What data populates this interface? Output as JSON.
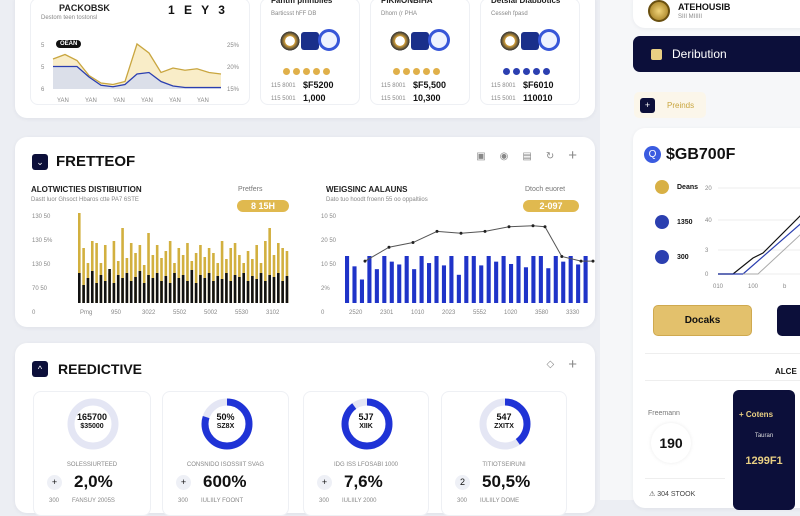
{
  "overview": {
    "chart_card": {
      "title": "PACKOBSK",
      "subtitle": "Destom teen tostonsl",
      "legend": "1 E Y 3",
      "tag": "OEAN",
      "y_left": [
        "5",
        "5",
        "6"
      ],
      "y_right": [
        "25%",
        "20%",
        "15%"
      ],
      "x_labels": [
        "YAN",
        "YAN",
        "YAN",
        "YAN",
        "YAN",
        "YAN"
      ],
      "gold_series": [
        40,
        46,
        38,
        18,
        8,
        6,
        10,
        60,
        48,
        22,
        28,
        25,
        27,
        22,
        20
      ],
      "blue_series": [
        30,
        30,
        30,
        16,
        5,
        3,
        6,
        20,
        22,
        10,
        4,
        2,
        2,
        2,
        2
      ],
      "colors": {
        "gold": "#c9a640",
        "blue": "#2b3fb0"
      }
    },
    "cards": [
      {
        "title": "Fantm pmnbiles",
        "subtitle": "Barticsst hFF DB",
        "dot_color": "#e0b04a",
        "label1": "115 8001",
        "value1": "$F5200",
        "label2": "115 5001",
        "value2": "1,000"
      },
      {
        "title": "PIKMONBIHA",
        "subtitle": "Dhorn (r PHA",
        "dot_color": "#e0b04a",
        "label1": "115 8001",
        "value1": "$F5,500",
        "label2": "115 5001",
        "value2": "10,300"
      },
      {
        "title": "Detsial Diabbotics",
        "subtitle": "Cesseh fpasd",
        "dot_color": "#2b3fb0",
        "label1": "115 8001",
        "value1": "$F6010",
        "label2": "115 5001",
        "value2": "110010"
      }
    ]
  },
  "analytics": {
    "title": "FRETTEOF",
    "toolbar_icons": [
      "save-icon",
      "circle-icon",
      "doc-icon",
      "refresh-icon",
      "plus-icon"
    ],
    "left": {
      "title": "ALOTWICTIES DISTIBIUTION",
      "subtitle": "Dastt luor Ghsoct Hbaros ctte PA7 6STE",
      "badge_label": "Pretfers",
      "badge_value": "8 15H",
      "y_labels": [
        "130 50",
        "130 5%",
        "130 50",
        "70 50",
        "0"
      ],
      "x_labels": [
        "Pmg",
        "950",
        "3022",
        "5502",
        "5002",
        "5530",
        "3102"
      ],
      "gold": [
        90,
        55,
        40,
        62,
        60,
        40,
        58,
        30,
        62,
        42,
        75,
        45,
        60,
        50,
        58,
        38,
        70,
        48,
        58,
        45,
        52,
        62,
        40,
        55,
        48,
        60,
        42,
        50,
        58,
        46,
        55,
        50,
        40,
        62,
        44,
        55,
        60,
        48,
        40,
        52,
        44,
        58,
        40,
        62,
        75,
        48,
        60,
        55,
        52
      ],
      "dark": [
        30,
        18,
        25,
        32,
        20,
        28,
        22,
        34,
        20,
        28,
        25,
        30,
        22,
        26,
        32,
        20,
        28,
        25,
        30,
        22,
        27,
        20,
        30,
        25,
        28,
        22,
        33,
        20,
        28,
        25,
        30,
        22,
        27,
        24,
        30,
        22,
        28,
        26,
        30,
        22,
        27,
        24,
        30,
        22,
        28,
        26,
        30,
        22,
        27
      ],
      "colors": {
        "gold": "#d2b03f",
        "dark": "#111"
      }
    },
    "right": {
      "title": "WEIGSINC AALAUNS",
      "subtitle": "Dato tuo hoodt froenn 55 oo oppaltiios",
      "badge_label": "Dtoch euoret",
      "badge_value": "2-097",
      "y_labels": [
        "10 50",
        "20 50",
        "10 50",
        "2%",
        "0"
      ],
      "x_labels": [
        "2520",
        "2301",
        "1010",
        "2023",
        "5552",
        "1020",
        "3580",
        "3330"
      ],
      "bars": [
        100,
        78,
        50,
        100,
        72,
        100,
        88,
        82,
        100,
        72,
        100,
        85,
        100,
        80,
        100,
        60,
        100,
        100,
        80,
        100,
        88,
        100,
        83,
        100,
        76,
        100,
        100,
        74,
        100,
        88,
        100,
        82,
        100
      ],
      "line": [
        [
          0,
          45
        ],
        [
          1,
          60
        ],
        [
          2,
          65
        ],
        [
          3,
          77
        ],
        [
          4,
          75
        ],
        [
          5,
          77
        ],
        [
          6,
          82
        ],
        [
          7,
          83
        ],
        [
          7.5,
          82
        ],
        [
          8.2,
          50
        ],
        [
          9,
          45
        ],
        [
          9.5,
          45
        ]
      ],
      "colors": {
        "bar": "#1f33c8",
        "line": "#555"
      }
    }
  },
  "predictive": {
    "title": "REEDICTIVE",
    "cards": [
      {
        "ring_line1": "165700",
        "ring_line2": "$35000",
        "ring_pct": 0,
        "caption": "SOLESSIURTEED",
        "badge": "+",
        "value": "2,0%",
        "foot_l": "300",
        "foot_r": "FANSUY 2005S"
      },
      {
        "ring_line1": "50%",
        "ring_line2": "SZ8X",
        "ring_pct": 80,
        "caption": "CONSNIDO ISOSSIIT SVAG",
        "badge": "+",
        "value": "600%",
        "foot_l": "300",
        "foot_r": "IULIILY FOONT"
      },
      {
        "ring_line1": "5J7",
        "ring_line2": "XIIK",
        "ring_pct": 90,
        "caption": "IDG ISS LFOSABI 1000",
        "badge": "+",
        "value": "7,6%",
        "foot_l": "300",
        "foot_r": "IULIILY 2000"
      },
      {
        "ring_line1": "547",
        "ring_line2": "ZXITX",
        "ring_pct": 40,
        "caption": "TITIOTSEIRUNI",
        "badge": "2",
        "value": "50,5%",
        "foot_l": "300",
        "foot_r": "IULIILY DOME"
      }
    ],
    "ring_color": "#1f33d6"
  },
  "side": {
    "profile": {
      "name": "ATEHOUSIB",
      "sub": "SIII MIIIII"
    },
    "dist_button": "Deribution",
    "tab": "Preinds",
    "balance": "$GB700F",
    "legend": [
      {
        "label": "Deans",
        "color": "#d8b045"
      },
      {
        "label": "1350",
        "color": "#2b3fb0"
      },
      {
        "label": "300",
        "color": "#2b3fb0"
      }
    ],
    "y_labels": [
      "20",
      "40",
      "3",
      "0"
    ],
    "x_labels": [
      "010",
      "100",
      "b"
    ],
    "docs_button": "Docaks",
    "section_title": "ALCE",
    "stat_label": "Freemann",
    "stat_value": "190",
    "dark_card": {
      "title": "Cotens",
      "sub": "Tauran",
      "value": "1299F1"
    },
    "footer_label": "304 STOOK"
  }
}
